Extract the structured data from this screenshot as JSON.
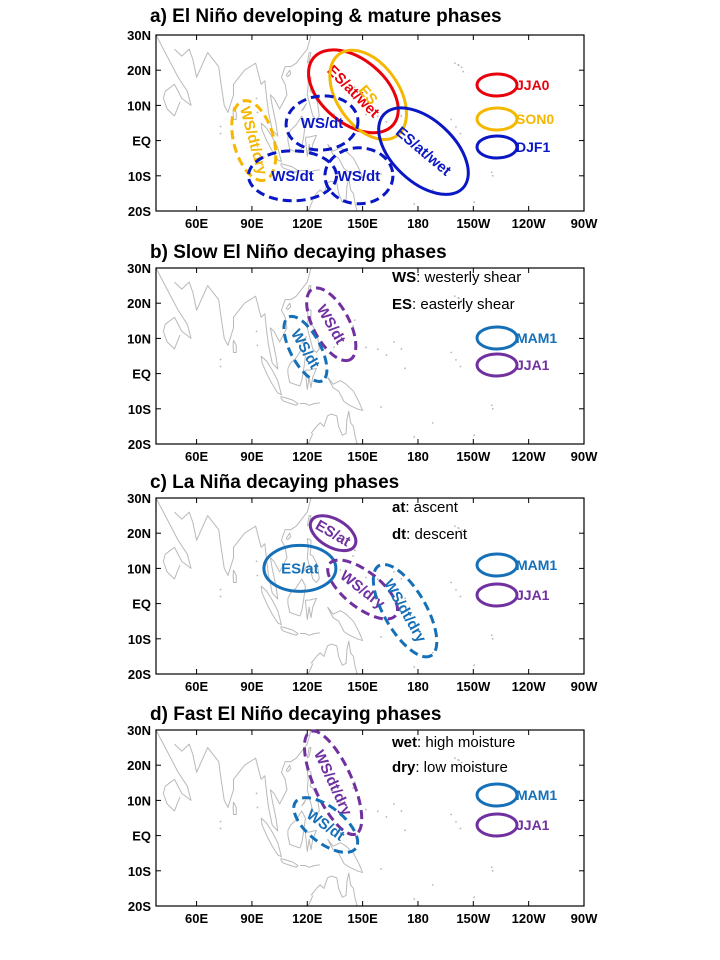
{
  "colors": {
    "JJA0": "#e8000b",
    "SON0": "#f5b700",
    "DJF1": "#0a17c4",
    "MAM1": "#1570b8",
    "JJA1": "#7030a0"
  },
  "axes": {
    "lat_ticks": [
      "30N",
      "20N",
      "10N",
      "EQ",
      "10S",
      "20S"
    ],
    "lon_ticks": [
      "60E",
      "90E",
      "120E",
      "150E",
      "180",
      "150W",
      "120W",
      "90W"
    ]
  },
  "panels": [
    {
      "id": "a",
      "title": "a) El Niño developing & mature phases",
      "legend": [
        {
          "key": "JJA0",
          "label": "JJA0"
        },
        {
          "key": "SON0",
          "label": "SON0"
        },
        {
          "key": "DJF1",
          "label": "DJF1"
        }
      ],
      "notes": [],
      "ellipses": [
        {
          "key": "JJA0",
          "style": "solid",
          "label": "ES/at/wet",
          "center_lon": 145,
          "center_lat": 14,
          "label_rotation": 45
        },
        {
          "key": "SON0",
          "style": "solid",
          "label": "ES",
          "center_lon": 153,
          "center_lat": 13,
          "label_rotation": 50
        },
        {
          "key": "DJF1",
          "style": "solid",
          "label": "ES/at/wet",
          "center_lon": 183,
          "center_lat": -3,
          "label_rotation": 40
        },
        {
          "key": "SON0",
          "style": "dashed",
          "label": "WS/dt/dry",
          "center_lon": 91,
          "center_lat": 0,
          "label_rotation": 75
        },
        {
          "key": "DJF1",
          "style": "dashed",
          "label": "WS/dt",
          "center_lon": 128,
          "center_lat": 5,
          "label_rotation": 0
        },
        {
          "key": "DJF1",
          "style": "dashed",
          "label": "WS/dt",
          "center_lon": 112,
          "center_lat": -10,
          "label_rotation": 0
        },
        {
          "key": "DJF1",
          "style": "dashed",
          "label": "WS/dt",
          "center_lon": 148,
          "center_lat": -10,
          "label_rotation": 0
        }
      ]
    },
    {
      "id": "b",
      "title": "b) Slow El Niño decaying phases",
      "legend": [
        {
          "key": "MAM1",
          "label": "MAM1"
        },
        {
          "key": "JJA1",
          "label": "JJA1"
        }
      ],
      "notes": [
        {
          "term": "WS",
          "desc": ": westerly shear"
        },
        {
          "term": "ES",
          "desc": ": easterly shear"
        }
      ],
      "ellipses": [
        {
          "key": "JJA1",
          "style": "dashed",
          "label": "WS/dt",
          "center_lon": 133,
          "center_lat": 14,
          "label_rotation": 60
        },
        {
          "key": "MAM1",
          "style": "dashed",
          "label": "WS/dt",
          "center_lon": 119,
          "center_lat": 7,
          "label_rotation": 60
        }
      ]
    },
    {
      "id": "c",
      "title": "c) La Niña decaying phases",
      "legend": [
        {
          "key": "MAM1",
          "label": "MAM1"
        },
        {
          "key": "JJA1",
          "label": "JJA1"
        }
      ],
      "notes": [
        {
          "term": "at",
          "desc": ": ascent"
        },
        {
          "term": "dt",
          "desc": ": descent"
        }
      ],
      "ellipses": [
        {
          "key": "MAM1",
          "style": "solid",
          "label": "ES/at",
          "center_lon": 116,
          "center_lat": 10,
          "label_rotation": 0
        },
        {
          "key": "JJA1",
          "style": "solid",
          "label": "ES/at",
          "center_lon": 134,
          "center_lat": 20,
          "label_rotation": 30
        },
        {
          "key": "JJA1",
          "style": "dashed",
          "label": "WS/dry",
          "center_lon": 150,
          "center_lat": 4,
          "label_rotation": 38
        },
        {
          "key": "MAM1",
          "style": "dashed",
          "label": "WS/dt/dry",
          "center_lon": 173,
          "center_lat": -2,
          "label_rotation": 60
        }
      ]
    },
    {
      "id": "d",
      "title": "d) Fast El Niño decaying phases",
      "legend": [
        {
          "key": "MAM1",
          "label": "MAM1"
        },
        {
          "key": "JJA1",
          "label": "JJA1"
        }
      ],
      "notes": [
        {
          "term": "wet",
          "desc": ": high moisture"
        },
        {
          "term": "dry",
          "desc": ": low moisture"
        }
      ],
      "ellipses": [
        {
          "key": "JJA1",
          "style": "dashed",
          "label": "WS/dt/dry",
          "center_lon": 134,
          "center_lat": 15,
          "label_rotation": 65
        },
        {
          "key": "MAM1",
          "style": "dashed",
          "label": "WS/dt",
          "center_lon": 130,
          "center_lat": 3,
          "label_rotation": 35
        }
      ]
    }
  ]
}
